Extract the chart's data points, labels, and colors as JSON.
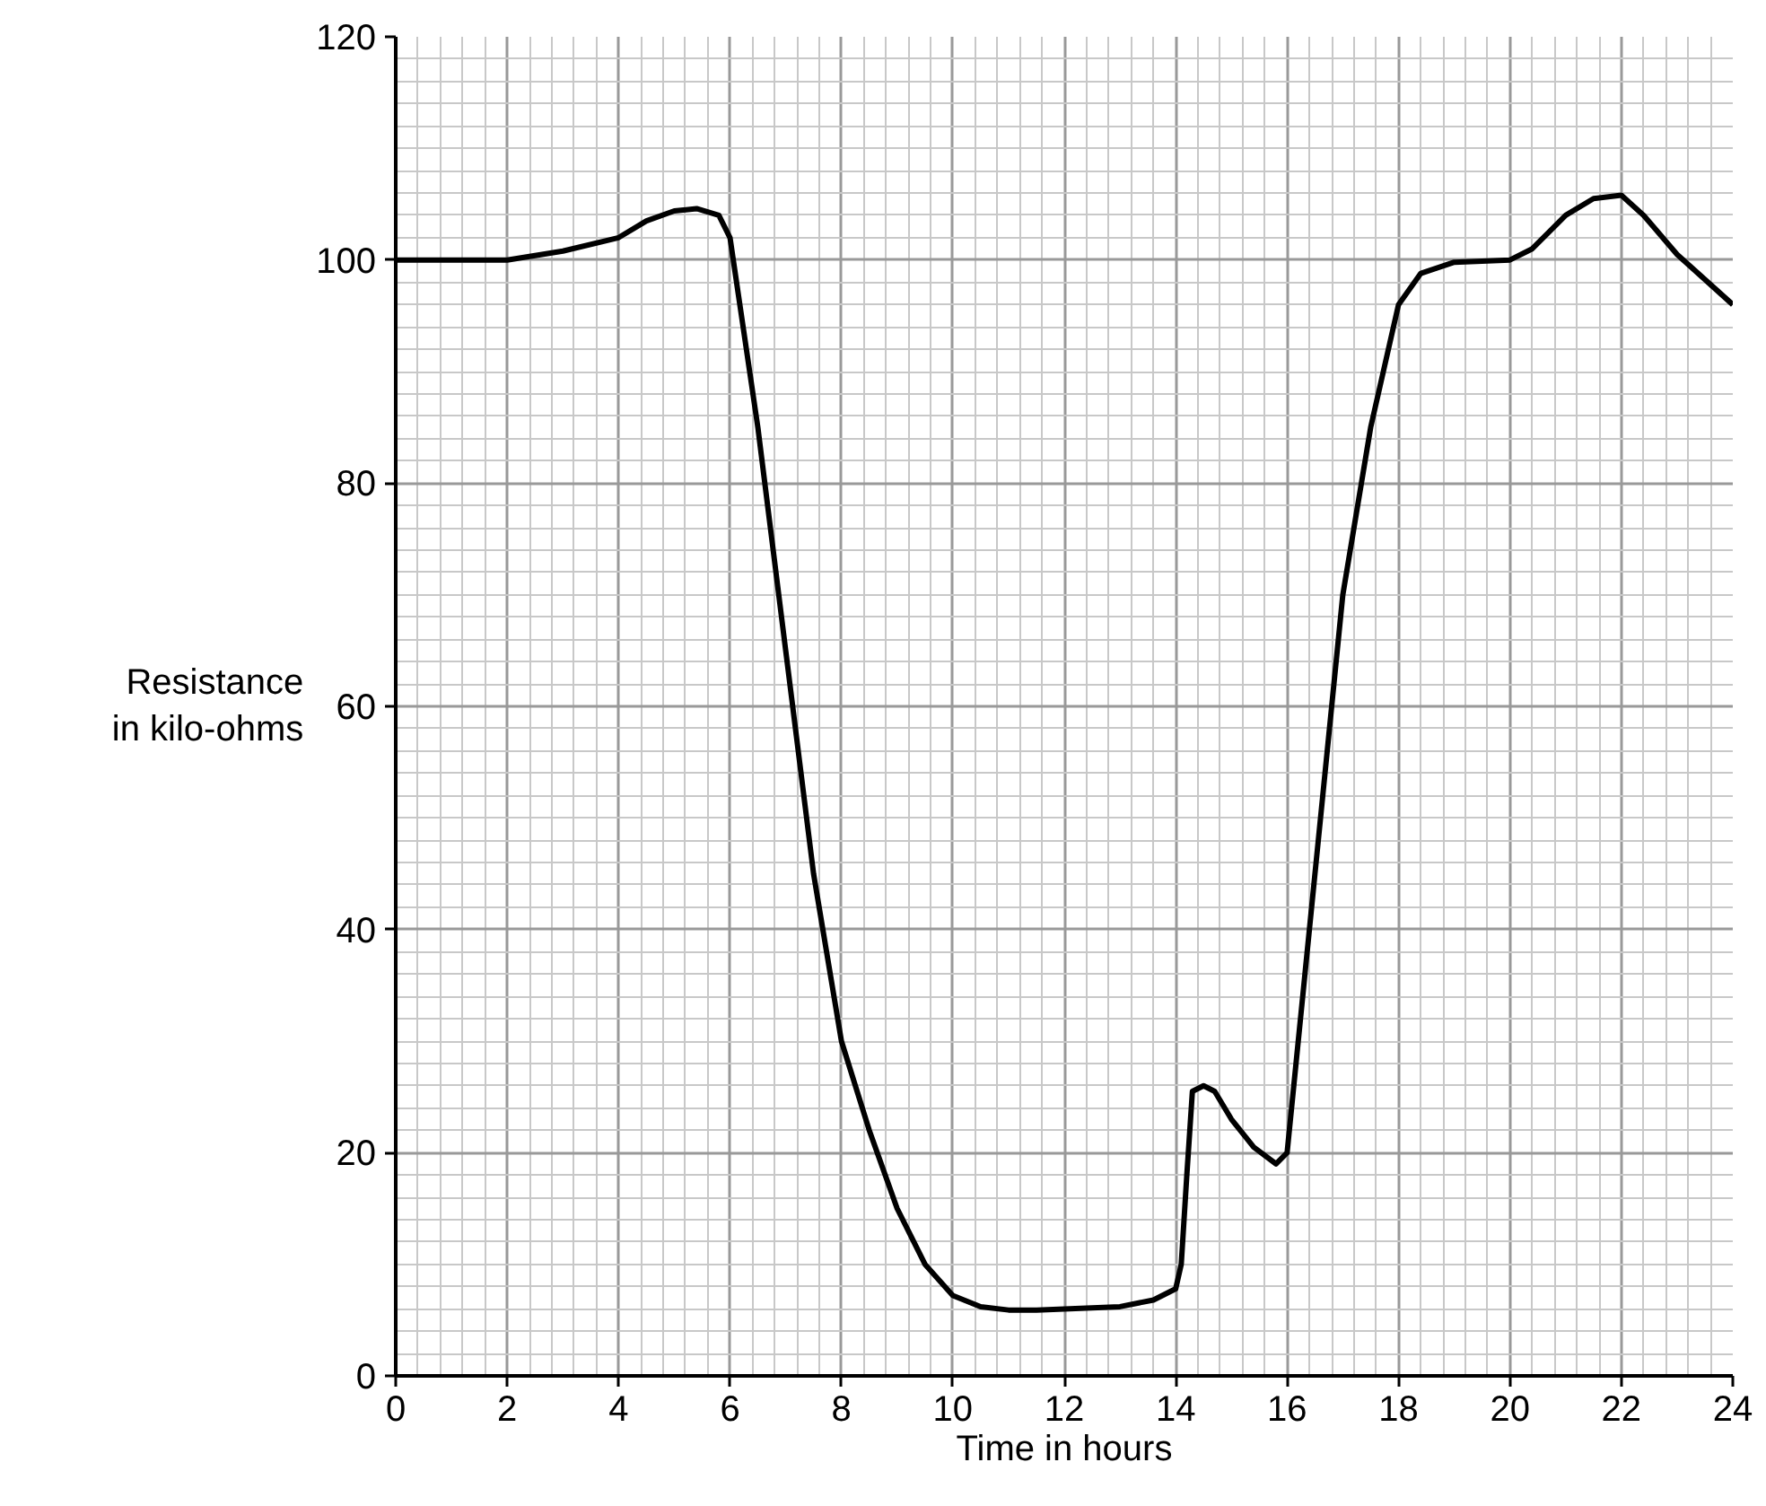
{
  "chart_data": {
    "type": "line",
    "xlabel": "Time in hours",
    "ylabel": "Resistance\nin kilo-ohms",
    "x": [
      0,
      2,
      3,
      4,
      4.5,
      5,
      5.4,
      5.8,
      6,
      6.5,
      7,
      7.5,
      8,
      8.5,
      9,
      9.5,
      10,
      10.5,
      11,
      11.5,
      12,
      13,
      13.6,
      14,
      14.1,
      14.2,
      14.3,
      14.5,
      14.7,
      15,
      15.4,
      15.8,
      16,
      16.5,
      17,
      17.5,
      18,
      18.4,
      19,
      20,
      20.4,
      21,
      21.5,
      22,
      22.4,
      23,
      24
    ],
    "series": [
      {
        "color": "#000000",
        "values": [
          100,
          100,
          100.8,
          102,
          103.5,
          104.4,
          104.6,
          104,
          102,
          85,
          65,
          45,
          30,
          22,
          15,
          10,
          7.2,
          6.2,
          5.9,
          5.9,
          6,
          6.2,
          6.8,
          7.8,
          10,
          18,
          25.5,
          26,
          25.5,
          23,
          20.5,
          19,
          20,
          45,
          70,
          85,
          96,
          98.8,
          99.8,
          100,
          101,
          104,
          105.5,
          105.8,
          104,
          100.5,
          96
        ]
      }
    ],
    "xlim": [
      0,
      24
    ],
    "ylim": [
      0,
      120
    ],
    "xticks": [
      0,
      2,
      4,
      6,
      8,
      10,
      12,
      14,
      16,
      18,
      20,
      22,
      24
    ],
    "yticks": [
      0,
      20,
      40,
      60,
      80,
      100,
      120
    ],
    "grid": true,
    "line_style": "solid"
  }
}
